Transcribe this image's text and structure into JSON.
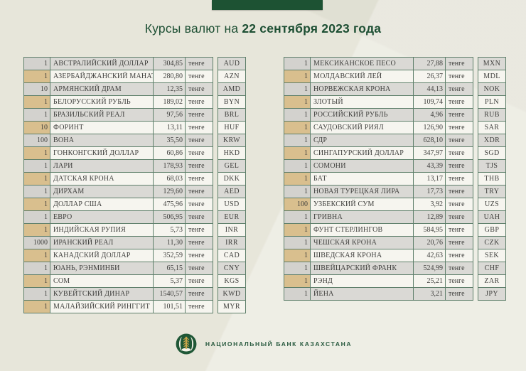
{
  "header": {
    "title_prefix": "Курсы валют на ",
    "title_date": "22 сентября 2023 года"
  },
  "unit_label": "тенге",
  "tables": {
    "left": {
      "rows": [
        {
          "qty": "1",
          "name": "АВСТРАЛИЙСКИЙ ДОЛЛАР",
          "rate": "304,85",
          "unit": "тенге",
          "code": "AUD"
        },
        {
          "qty": "1",
          "name": "АЗЕРБАЙДЖАНСКИЙ МАНАТ",
          "rate": "280,80",
          "unit": "тенге",
          "code": "AZN"
        },
        {
          "qty": "10",
          "name": "АРМЯНСКИЙ ДРАМ",
          "rate": "12,35",
          "unit": "тенге",
          "code": "AMD"
        },
        {
          "qty": "1",
          "name": "БЕЛОРУССКИЙ РУБЛЬ",
          "rate": "189,02",
          "unit": "тенге",
          "code": "BYN"
        },
        {
          "qty": "1",
          "name": "БРАЗИЛЬСКИЙ РЕАЛ",
          "rate": "97,56",
          "unit": "тенге",
          "code": "BRL"
        },
        {
          "qty": "10",
          "name": "ФОРИНТ",
          "rate": "13,11",
          "unit": "тенге",
          "code": "HUF"
        },
        {
          "qty": "100",
          "name": "ВОНА",
          "rate": "35,50",
          "unit": "тенге",
          "code": "KRW"
        },
        {
          "qty": "1",
          "name": "ГОНКОНГСКИЙ ДОЛЛАР",
          "rate": "60,86",
          "unit": "тенге",
          "code": "HKD"
        },
        {
          "qty": "1",
          "name": "ЛАРИ",
          "rate": "178,93",
          "unit": "тенге",
          "code": "GEL"
        },
        {
          "qty": "1",
          "name": "ДАТСКАЯ КРОНА",
          "rate": "68,03",
          "unit": "тенге",
          "code": "DKK"
        },
        {
          "qty": "1",
          "name": "ДИРХАМ",
          "rate": "129,60",
          "unit": "тенге",
          "code": "AED"
        },
        {
          "qty": "1",
          "name": "ДОЛЛАР США",
          "rate": "475,96",
          "unit": "тенге",
          "code": "USD"
        },
        {
          "qty": "1",
          "name": "ЕВРО",
          "rate": "506,95",
          "unit": "тенге",
          "code": "EUR"
        },
        {
          "qty": "1",
          "name": "ИНДИЙСКАЯ РУПИЯ",
          "rate": "5,73",
          "unit": "тенге",
          "code": "INR"
        },
        {
          "qty": "1000",
          "name": "ИРАНСКИЙ РЕАЛ",
          "rate": "11,30",
          "unit": "тенге",
          "code": "IRR"
        },
        {
          "qty": "1",
          "name": "КАНАДСКИЙ ДОЛЛАР",
          "rate": "352,59",
          "unit": "тенге",
          "code": "CAD"
        },
        {
          "qty": "1",
          "name": "ЮАНЬ, РЭНМИНБИ",
          "rate": "65,15",
          "unit": "тенге",
          "code": "CNY"
        },
        {
          "qty": "1",
          "name": "СОМ",
          "rate": "5,37",
          "unit": "тенге",
          "code": "KGS"
        },
        {
          "qty": "1",
          "name": "КУВЕЙТСКИЙ ДИНАР",
          "rate": "1540,57",
          "unit": "тенге",
          "code": "KWD"
        },
        {
          "qty": "1",
          "name": "МАЛАЙЗИЙСКИЙ РИНГГИТ",
          "rate": "101,51",
          "unit": "тенге",
          "code": "MYR"
        }
      ]
    },
    "right": {
      "rows": [
        {
          "qty": "1",
          "name": "МЕКСИКАНСКОЕ ПЕСО",
          "rate": "27,88",
          "unit": "тенге",
          "code": "MXN"
        },
        {
          "qty": "1",
          "name": "МОЛДАВСКИЙ ЛЕЙ",
          "rate": "26,37",
          "unit": "тенге",
          "code": "MDL"
        },
        {
          "qty": "1",
          "name": "НОРВЕЖСКАЯ КРОНА",
          "rate": "44,13",
          "unit": "тенге",
          "code": "NOK"
        },
        {
          "qty": "1",
          "name": "ЗЛОТЫЙ",
          "rate": "109,74",
          "unit": "тенге",
          "code": "PLN"
        },
        {
          "qty": "1",
          "name": "РОССИЙСКИЙ РУБЛЬ",
          "rate": "4,96",
          "unit": "тенге",
          "code": "RUB"
        },
        {
          "qty": "1",
          "name": "САУДОВСКИЙ РИЯЛ",
          "rate": "126,90",
          "unit": "тенге",
          "code": "SAR"
        },
        {
          "qty": "1",
          "name": "СДР",
          "rate": "628,10",
          "unit": "тенге",
          "code": "XDR"
        },
        {
          "qty": "1",
          "name": "СИНГАПУРСКИЙ ДОЛЛАР",
          "rate": "347,97",
          "unit": "тенге",
          "code": "SGD"
        },
        {
          "qty": "1",
          "name": "СОМОНИ",
          "rate": "43,39",
          "unit": "тенге",
          "code": "TJS"
        },
        {
          "qty": "1",
          "name": "БАТ",
          "rate": "13,17",
          "unit": "тенге",
          "code": "THB"
        },
        {
          "qty": "1",
          "name": "НОВАЯ ТУРЕЦКАЯ ЛИРА",
          "rate": "17,73",
          "unit": "тенге",
          "code": "TRY"
        },
        {
          "qty": "100",
          "name": "УЗБЕКСКИЙ СУМ",
          "rate": "3,92",
          "unit": "тенге",
          "code": "UZS"
        },
        {
          "qty": "1",
          "name": "ГРИВНА",
          "rate": "12,89",
          "unit": "тенге",
          "code": "UAH"
        },
        {
          "qty": "1",
          "name": "ФУНТ СТЕРЛИНГОВ",
          "rate": "584,95",
          "unit": "тенге",
          "code": "GBP"
        },
        {
          "qty": "1",
          "name": "ЧЕШСКАЯ КРОНА",
          "rate": "20,76",
          "unit": "тенге",
          "code": "CZK"
        },
        {
          "qty": "1",
          "name": "ШВЕДСКАЯ КРОНА",
          "rate": "42,63",
          "unit": "тенге",
          "code": "SEK"
        },
        {
          "qty": "1",
          "name": "ШВЕЙЦАРСКИЙ ФРАНК",
          "rate": "524,99",
          "unit": "тенге",
          "code": "CHF"
        },
        {
          "qty": "1",
          "name": "РЭНД",
          "rate": "25,21",
          "unit": "тенге",
          "code": "ZAR"
        },
        {
          "qty": "1",
          "name": "ЙЕНА",
          "rate": "3,21",
          "unit": "тенге",
          "code": "JPY"
        }
      ]
    }
  },
  "footer": {
    "bank_name": "НАЦИОНАЛЬНЫЙ БАНК КАЗАХСТАНА"
  },
  "colors": {
    "accent_green": "#1d5233",
    "title_green": "#1d4f33",
    "border_green": "#5e7f6a",
    "row_gray": "#dad9d5",
    "row_white": "#f6f5ef",
    "qty_tan": "#d9bf8e",
    "emblem_gold": "#c9a44a",
    "background_cream": "#e7e6da"
  }
}
